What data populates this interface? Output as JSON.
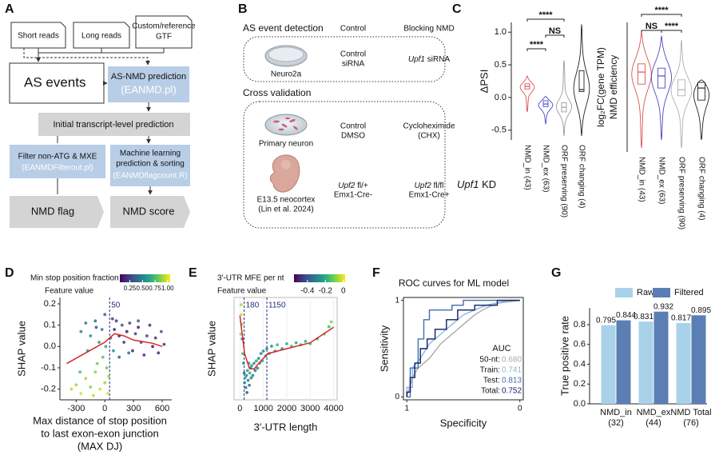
{
  "figure_labels": [
    "A",
    "B",
    "C",
    "D",
    "E",
    "F",
    "G"
  ],
  "diagram_a": {
    "inputs": [
      [
        "Short reads"
      ],
      [
        "Long reads"
      ],
      [
        "Custom/reference",
        "GTF"
      ]
    ],
    "as_events": "AS events",
    "prediction": [
      "AS-NMD prediction",
      "(EANMD.pl)"
    ],
    "initial": "Initial transcript-level prediction",
    "filter": [
      "Filter non-ATG & MXE",
      "(EANMDFilterout.pl)"
    ],
    "ml": [
      "Machine learning",
      "prediction & sorting",
      "(EANMDflagcount.R)"
    ],
    "flag": "NMD flag",
    "score": "NMD score"
  },
  "diagram_b": {
    "detection": {
      "title": "AS event detection",
      "col_control": "Control",
      "col_blocking": "Blocking NMD",
      "sample": "Neuro2a",
      "control": [
        "Control",
        "siRNA"
      ],
      "blocking": {
        "gene": "Upf1",
        "text": "siRNA"
      }
    },
    "validation": {
      "title": "Cross validation",
      "neuron": {
        "sample": "Primary neuron",
        "control": [
          "Control",
          "DMSO"
        ],
        "blocking": [
          "Cycloheximide",
          "(CHX)"
        ]
      },
      "cortex": {
        "sample": [
          "E13.5 neocortex",
          "(Lin et al. 2024)"
        ],
        "control": [
          {
            "gene": "Upf2",
            "text": "fl/+"
          },
          "Emx1-Cre-"
        ],
        "blocking": [
          {
            "gene": "Upf2",
            "text": "fl/fl"
          },
          "Emx1-Cre+"
        ]
      }
    }
  },
  "chart_data": [
    {
      "type": "violin",
      "ylabel": [
        "ΔPSI"
      ],
      "xlabel": {
        "gene": "Upf1",
        "text": "KD"
      },
      "categories": [
        "NMD_in (43)",
        "NMD_ex (63)",
        "ORF preserving (90)",
        "ORF changing (4)"
      ],
      "colors": [
        "#d9534f",
        "#4a4ac4",
        "#9a9a9a",
        "#222222"
      ],
      "median": [
        0.17,
        -0.1,
        -0.15,
        0.12
      ],
      "q1": [
        0.13,
        -0.14,
        -0.22,
        0.09
      ],
      "q3": [
        0.21,
        -0.05,
        -0.08,
        0.41
      ],
      "min": [
        -0.22,
        -0.4,
        -0.59,
        -0.59
      ],
      "max": [
        0.33,
        0.02,
        0.57,
        1.12
      ],
      "ylim": [
        -0.65,
        1.15
      ],
      "yticks": [
        -0.5,
        {
          "value": 0,
          "label": "0.0"
        },
        0.5,
        {
          "value": 1,
          "label": "1.0"
        }
      ],
      "comparisons": [
        "****",
        "NS",
        "****"
      ]
    },
    {
      "type": "violin",
      "ylabel": [
        "log₂FC(gene TPM)",
        "NMD efficiency"
      ],
      "categories": [
        "NMD_in (43)",
        "NMD_ex (63)",
        "ORF preserving (90)",
        "ORF changing (4)"
      ],
      "colors": [
        "#d9534f",
        "#4a4ac4",
        "#b0b0b0",
        "#222222"
      ],
      "median": [
        0.35,
        0.26,
        -0.06,
        -0.02
      ],
      "q1": [
        0.07,
        -0.02,
        -0.2,
        -0.3
      ],
      "q3": [
        0.54,
        0.44,
        0.17,
        0.11
      ],
      "min": [
        -1.41,
        -1.22,
        -1.41,
        -1.22
      ],
      "max": [
        1.28,
        1.19,
        1.09,
        0.17
      ],
      "ylim": [
        -1.5,
        1.5
      ],
      "comparisons": [
        "****",
        "NS",
        "****"
      ]
    },
    {
      "type": "scatter",
      "title": "Min stop position fraction",
      "colorbar_label": "Feature value",
      "colormap": "viridis",
      "clim": [
        0.05,
        1.05
      ],
      "colorbar_ticks": [
        0.25,
        {
          "value": 0.5,
          "label": "0.50"
        },
        0.75,
        {
          "value": 1,
          "label": "1.00"
        }
      ],
      "ylabel": "SHAP value",
      "xlabel": [
        "Max distance of stop position",
        "to last exon-exon junction",
        "(MAX DJ)"
      ],
      "x": [
        -350,
        -300,
        -250,
        -200,
        -150,
        -100,
        -50,
        0,
        20,
        -20,
        -80,
        30,
        40,
        -120,
        -260,
        -250,
        -200,
        -150,
        -100,
        -60,
        -30,
        0,
        10,
        -180,
        -90,
        80,
        100,
        120,
        150,
        180,
        200,
        230,
        260,
        290,
        320,
        350,
        380,
        410,
        440,
        470,
        500,
        530,
        560,
        590,
        620,
        150,
        250,
        350,
        60,
        90
      ],
      "y": [
        -0.2,
        -0.18,
        -0.22,
        -0.15,
        -0.19,
        -0.12,
        -0.2,
        -0.17,
        -0.1,
        -0.05,
        -0.08,
        -0.22,
        -0.14,
        -0.23,
        -0.12,
        0.07,
        0.11,
        0.05,
        0.12,
        0.02,
        0.08,
        0.15,
        0,
        -0.02,
        0.09,
        0.13,
        0.08,
        0.12,
        0.05,
        0.1,
        0.02,
        0.07,
        0.11,
        -0.02,
        0.06,
        0.09,
        0.02,
        -0.04,
        0.05,
        0.1,
        0,
        0.04,
        -0.03,
        0.07,
        0.01,
        -0.05,
        -0.03,
        0.12,
        0.04,
        -0.02
      ],
      "feature": [
        0.95,
        0.9,
        0.98,
        0.92,
        0.85,
        0.88,
        0.97,
        0.9,
        0.8,
        0.78,
        0.82,
        0.99,
        0.86,
        0.95,
        0.75,
        0.5,
        0.45,
        0.55,
        0.4,
        0.6,
        0.5,
        0.35,
        0.65,
        0.62,
        0.3,
        0.25,
        0.15,
        0.2,
        0.12,
        0.3,
        0.18,
        0.1,
        0.22,
        0.14,
        0.28,
        0.12,
        0.2,
        0.16,
        0.25,
        0.18,
        0.12,
        0.22,
        0.15,
        0.3,
        0.2,
        0.35,
        0.4,
        0.35,
        0.45,
        0.55
      ],
      "trend": {
        "x": [
          -400,
          -200,
          0,
          100,
          200,
          300,
          500,
          600
        ],
        "y": [
          -0.08,
          -0.03,
          0.02,
          0.06,
          0.05,
          0.03,
          0.015,
          0
        ]
      },
      "trend_color": "#d62728",
      "vlines": [
        {
          "value": 50,
          "label": "50"
        }
      ],
      "vline_color": "#1f2f7a",
      "xlim": [
        -470,
        700
      ],
      "ylim": [
        -0.25,
        0.23
      ],
      "xticks": [
        -300,
        0,
        300,
        600
      ],
      "yticks": [
        0.2,
        0.1,
        {
          "value": 0,
          "label": "0.0"
        },
        -0.1,
        -0.2
      ]
    },
    {
      "type": "scatter",
      "title": "3′-UTR MFE per nt",
      "colorbar_label": "Feature value",
      "colormap": "viridis",
      "clim": [
        -0.55,
        0.02
      ],
      "colorbar_ticks": [
        -0.4,
        -0.2,
        0
      ],
      "ylabel": "SHAP value",
      "xlabel": "3′-UTR length",
      "grid": true,
      "x": [
        50,
        60,
        80,
        100,
        150,
        180,
        200,
        220,
        250,
        280,
        300,
        320,
        350,
        380,
        400,
        420,
        450,
        480,
        500,
        550,
        600,
        650,
        700,
        750,
        800,
        850,
        900,
        950,
        1000,
        1100,
        1150,
        1250,
        1350,
        1500,
        1600,
        1800,
        2000,
        2200,
        2400,
        2600,
        2800,
        3000,
        3300,
        3600,
        3800,
        3900,
        40,
        120
      ],
      "y": [
        0.9,
        0.7,
        0.5,
        0.2,
        -0.3,
        -0.5,
        -0.7,
        -0.6,
        -0.8,
        -0.55,
        -0.9,
        -0.45,
        -0.65,
        -0.3,
        -0.75,
        -0.5,
        -0.4,
        -0.6,
        -0.35,
        -0.55,
        -0.3,
        -0.45,
        -0.25,
        -0.4,
        -0.2,
        -0.3,
        -0.1,
        -0.25,
        -0.05,
        -0.15,
        0,
        -0.1,
        0.05,
        -0.05,
        0.08,
        0,
        0.1,
        0.05,
        0.12,
        0.08,
        0.15,
        0.1,
        0.2,
        0.3,
        0.45,
        0.55,
        0.3,
        -0.1
      ],
      "feature": [
        -0.05,
        -0.02,
        -0.1,
        -0.3,
        -0.25,
        -0.35,
        -0.3,
        -0.2,
        -0.32,
        -0.28,
        -0.4,
        -0.22,
        -0.3,
        -0.25,
        -0.35,
        -0.2,
        -0.3,
        -0.28,
        -0.24,
        -0.3,
        -0.26,
        -0.32,
        -0.22,
        -0.3,
        -0.26,
        -0.2,
        -0.3,
        -0.24,
        -0.28,
        -0.22,
        -0.3,
        -0.2,
        -0.26,
        -0.22,
        -0.18,
        -0.24,
        -0.2,
        -0.16,
        -0.22,
        -0.18,
        -0.2,
        -0.14,
        -0.18,
        -0.12,
        -0.16,
        -0.1,
        -0.08,
        -0.15
      ],
      "trend": {
        "x": [
          0,
          200,
          400,
          600,
          900,
          1200,
          2000,
          3000,
          4000
        ],
        "y": [
          0.68,
          -0.1,
          -0.4,
          -0.42,
          -0.25,
          -0.1,
          0,
          0.12,
          0.44
        ]
      },
      "trend_color": "#d62728",
      "vlines": [
        {
          "value": 180,
          "label": "180"
        },
        {
          "value": 1150,
          "label": "1150"
        }
      ],
      "vline_color": "#1f2f7a",
      "xlim": [
        -250,
        4150
      ],
      "ylim": [
        -1.05,
        1.05
      ],
      "xticks": [
        0,
        1000,
        2000,
        3000,
        4000
      ]
    },
    {
      "type": "line",
      "title": "ROC curves for ML model",
      "xlabel": "Specificity",
      "ylabel": "Sensitivity",
      "legend_title": "AUC",
      "xlim": [
        1.03,
        -0.03
      ],
      "ylim": [
        -0.03,
        1.03
      ],
      "xticks": [
        1,
        0
      ],
      "yticks": [
        0,
        1
      ],
      "series": [
        {
          "name": "50-nt:",
          "auc": "0.680",
          "color": "#aaaaaa",
          "x": [
            1,
            0.95,
            0.9,
            0.8,
            0.7,
            0.6,
            0.5,
            0.4,
            0.3,
            0.2,
            0
          ],
          "y": [
            0,
            0.2,
            0.3,
            0.4,
            0.55,
            0.65,
            0.75,
            0.85,
            0.92,
            0.97,
            1
          ]
        },
        {
          "name": "Train:",
          "auc": "0.741",
          "color": "#8fb8de",
          "x": [
            1,
            1,
            0.95,
            0.95,
            0.88,
            0.8,
            0.7,
            0.6,
            0.5,
            0.3,
            0.1,
            0
          ],
          "y": [
            0,
            0.1,
            0.1,
            0.3,
            0.4,
            0.55,
            0.65,
            0.75,
            0.85,
            0.95,
            1,
            1
          ]
        },
        {
          "name": "Test:",
          "auc": "0.813",
          "color": "#3f6fae",
          "x": [
            1,
            0.97,
            0.97,
            0.9,
            0.9,
            0.85,
            0.85,
            0.8,
            0.8,
            0.6,
            0.6,
            0.5,
            0.5,
            0
          ],
          "y": [
            0,
            0,
            0.3,
            0.3,
            0.6,
            0.6,
            0.8,
            0.8,
            0.9,
            0.9,
            0.95,
            0.95,
            1,
            1
          ]
        },
        {
          "name": "Total:",
          "auc": "0.752",
          "color": "#0b1f6e",
          "x": [
            1,
            1,
            0.97,
            0.97,
            0.93,
            0.93,
            0.88,
            0.88,
            0.82,
            0.82,
            0.75,
            0.75,
            0.65,
            0.65,
            0.55,
            0.55,
            0.4,
            0.4,
            0.2,
            0.2,
            0
          ],
          "y": [
            0,
            0.05,
            0.05,
            0.2,
            0.2,
            0.35,
            0.35,
            0.5,
            0.5,
            0.6,
            0.6,
            0.7,
            0.7,
            0.8,
            0.8,
            0.9,
            0.9,
            0.95,
            0.95,
            1,
            1
          ]
        }
      ]
    },
    {
      "type": "bar",
      "ylabel": "True positive rate",
      "categories": [
        [
          "NMD_in",
          "(32)"
        ],
        [
          "NMD_ex",
          "(44)"
        ],
        [
          "NMD Total",
          "(76)"
        ]
      ],
      "series": [
        {
          "name": "Raw",
          "color": "#a9d2ea",
          "values": [
            0.795,
            0.831,
            0.817
          ]
        },
        {
          "name": "Filtered",
          "color": "#5b7fb5",
          "values": [
            0.844,
            0.932,
            0.895
          ]
        }
      ],
      "ylim": [
        0,
        0.97
      ],
      "yticks": [
        {
          "value": 0,
          "label": "0.0"
        },
        0.2,
        0.4,
        0.6,
        0.8
      ]
    }
  ]
}
